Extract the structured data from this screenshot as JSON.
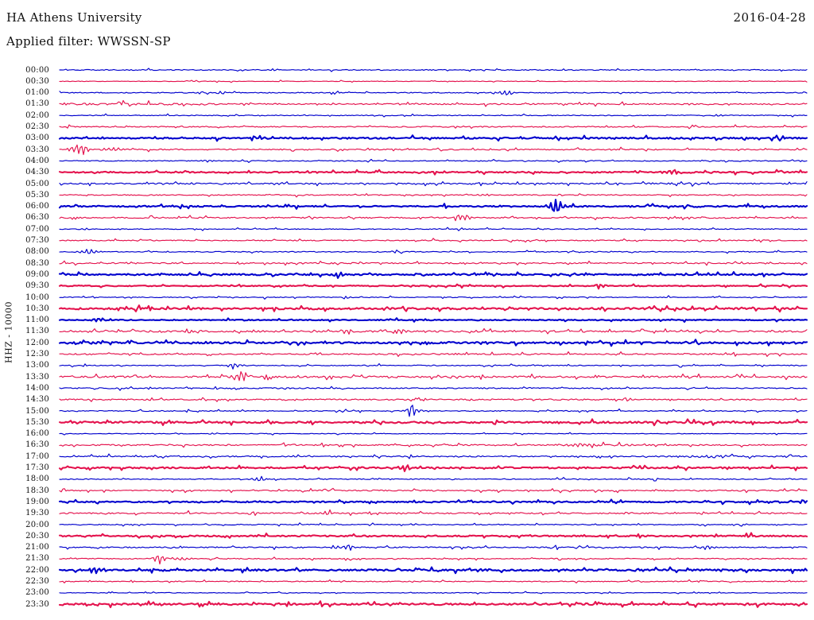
{
  "header": {
    "station_title": "HA Athens University",
    "date": "2016-04-28",
    "filter_label": "Applied filter: WWSSN-SP"
  },
  "axis": {
    "y_label": "HHZ - 10000"
  },
  "chart_data": {
    "type": "line",
    "subtype": "helicorder-daily-seismogram",
    "title": "HA Athens University",
    "date": "2016-04-28",
    "filter": "WWSSN-SP",
    "channel_scale_label": "HHZ - 10000",
    "row_duration_minutes": 30,
    "rows_count": 48,
    "colors": {
      "even_trace_blue": "#0000cd",
      "odd_trace_red": "#e4134e"
    },
    "encoding_note": "events: t = minutes into the 30-minute row (0-30), amp = peak amplitude in px, w = burst envelope half-width in px; noise = background microseism level; bold = thicker/denser trace line",
    "rows": [
      {
        "label": "00:00",
        "color": "blue",
        "bold": false,
        "noise": 1.0,
        "events": [
          {
            "t": 3.0,
            "amp": 1.5,
            "w": 4
          },
          {
            "t": 8.5,
            "amp": 1.8,
            "w": 6
          }
        ]
      },
      {
        "label": "00:30",
        "color": "red",
        "bold": false,
        "noise": 0.6,
        "events": []
      },
      {
        "label": "01:00",
        "color": "blue",
        "bold": false,
        "noise": 1.0,
        "events": [
          {
            "t": 6.5,
            "amp": 2.2,
            "w": 5
          },
          {
            "t": 17.9,
            "amp": 4.0,
            "w": 7
          }
        ]
      },
      {
        "label": "01:30",
        "color": "red",
        "bold": false,
        "noise": 1.4,
        "zones": [
          {
            "t0": 0,
            "t1": 6,
            "level": 2.4
          }
        ],
        "events": []
      },
      {
        "label": "02:00",
        "color": "blue",
        "bold": false,
        "noise": 0.9,
        "events": [
          {
            "t": 26.5,
            "amp": 1.5,
            "w": 5
          }
        ]
      },
      {
        "label": "02:30",
        "color": "red",
        "bold": false,
        "noise": 1.2,
        "events": []
      },
      {
        "label": "03:00",
        "color": "blue",
        "bold": true,
        "noise": 1.6,
        "events": [
          {
            "t": 8.1,
            "amp": 1.8,
            "w": 6
          }
        ]
      },
      {
        "label": "03:30",
        "color": "red",
        "bold": false,
        "noise": 1.3,
        "events": [
          {
            "t": 0.8,
            "amp": 8.5,
            "w": 8
          },
          {
            "t": 2.1,
            "amp": 2.5,
            "w": 10
          }
        ]
      },
      {
        "label": "04:00",
        "color": "blue",
        "bold": false,
        "noise": 1.0,
        "events": [
          {
            "t": 6.0,
            "amp": 1.5,
            "w": 8
          }
        ]
      },
      {
        "label": "04:30",
        "color": "red",
        "bold": true,
        "noise": 1.4,
        "events": [
          {
            "t": 24.5,
            "amp": 3.0,
            "w": 7
          }
        ]
      },
      {
        "label": "05:00",
        "color": "blue",
        "bold": false,
        "noise": 1.4,
        "zones": [
          {
            "t0": 23.5,
            "t1": 26,
            "level": 2.0
          }
        ],
        "events": [
          {
            "t": 8.8,
            "amp": 2.0,
            "w": 6
          }
        ]
      },
      {
        "label": "05:30",
        "color": "red",
        "bold": false,
        "noise": 1.1,
        "events": [
          {
            "t": 17.1,
            "amp": 2.0,
            "w": 5
          },
          {
            "t": 20.0,
            "amp": 1.5,
            "w": 4
          }
        ]
      },
      {
        "label": "06:00",
        "color": "blue",
        "bold": true,
        "noise": 1.4,
        "events": [
          {
            "t": 19.9,
            "amp": 10.0,
            "w": 4
          },
          {
            "t": 19.9,
            "amp": 3.0,
            "w": 12
          }
        ]
      },
      {
        "label": "06:30",
        "color": "red",
        "bold": false,
        "noise": 1.4,
        "events": [
          {
            "t": 16.2,
            "amp": 5.5,
            "w": 6
          }
        ]
      },
      {
        "label": "07:00",
        "color": "blue",
        "bold": false,
        "noise": 0.9,
        "events": [
          {
            "t": 1.0,
            "amp": 1.5,
            "w": 4
          }
        ]
      },
      {
        "label": "07:30",
        "color": "red",
        "bold": false,
        "noise": 1.1,
        "events": []
      },
      {
        "label": "08:00",
        "color": "blue",
        "bold": false,
        "noise": 1.0,
        "events": [
          {
            "t": 1.1,
            "amp": 3.5,
            "w": 9
          }
        ]
      },
      {
        "label": "08:30",
        "color": "red",
        "bold": false,
        "noise": 1.4,
        "events": [
          {
            "t": 7.2,
            "amp": 1.5,
            "w": 6
          }
        ]
      },
      {
        "label": "09:00",
        "color": "blue",
        "bold": true,
        "noise": 1.7,
        "events": [
          {
            "t": 11.2,
            "amp": 4.5,
            "w": 6
          }
        ]
      },
      {
        "label": "09:30",
        "color": "red",
        "bold": true,
        "noise": 1.0,
        "events": [
          {
            "t": 21.7,
            "amp": 4.0,
            "w": 5
          }
        ]
      },
      {
        "label": "10:00",
        "color": "blue",
        "bold": false,
        "noise": 0.9,
        "events": [
          {
            "t": 11.5,
            "amp": 1.5,
            "w": 5
          }
        ]
      },
      {
        "label": "10:30",
        "color": "red",
        "bold": true,
        "noise": 1.9,
        "events": []
      },
      {
        "label": "11:00",
        "color": "blue",
        "bold": true,
        "noise": 1.0,
        "events": [
          {
            "t": 1.5,
            "amp": 3.0,
            "w": 5
          }
        ]
      },
      {
        "label": "11:30",
        "color": "red",
        "bold": false,
        "noise": 1.8,
        "events": [
          {
            "t": 5.1,
            "amp": 2.5,
            "w": 5
          },
          {
            "t": 11.5,
            "amp": 3.5,
            "w": 6
          },
          {
            "t": 13.6,
            "amp": 3.5,
            "w": 6
          }
        ]
      },
      {
        "label": "12:00",
        "color": "blue",
        "bold": true,
        "noise": 1.8,
        "events": [
          {
            "t": 1.4,
            "amp": 2.0,
            "w": 5
          },
          {
            "t": 6.1,
            "amp": 2.0,
            "w": 5
          }
        ]
      },
      {
        "label": "12:30",
        "color": "red",
        "bold": false,
        "noise": 1.4,
        "events": []
      },
      {
        "label": "13:00",
        "color": "blue",
        "bold": false,
        "noise": 1.0,
        "events": [
          {
            "t": 7.0,
            "amp": 4.0,
            "w": 7
          }
        ]
      },
      {
        "label": "13:30",
        "color": "red",
        "bold": false,
        "noise": 1.9,
        "events": [
          {
            "t": 7.3,
            "amp": 8.5,
            "w": 7
          }
        ]
      },
      {
        "label": "14:00",
        "color": "blue",
        "bold": false,
        "noise": 1.3,
        "events": [
          {
            "t": 6.3,
            "amp": 1.5,
            "w": 4
          }
        ]
      },
      {
        "label": "14:30",
        "color": "red",
        "bold": false,
        "noise": 1.4,
        "events": [
          {
            "t": 22.8,
            "amp": 2.2,
            "w": 5
          }
        ]
      },
      {
        "label": "15:00",
        "color": "blue",
        "bold": false,
        "noise": 1.0,
        "events": [
          {
            "t": 14.1,
            "amp": 11.0,
            "w": 3
          },
          {
            "t": 14.3,
            "amp": 3.0,
            "w": 10
          }
        ]
      },
      {
        "label": "15:30",
        "color": "red",
        "bold": true,
        "noise": 1.9,
        "events": []
      },
      {
        "label": "16:00",
        "color": "blue",
        "bold": false,
        "noise": 0.7,
        "events": [
          {
            "t": 6.2,
            "amp": 1.3,
            "w": 4
          }
        ]
      },
      {
        "label": "16:30",
        "color": "red",
        "bold": false,
        "noise": 1.4,
        "zones": [
          {
            "t0": 20,
            "t1": 23,
            "level": 2.0
          }
        ],
        "events": [
          {
            "t": 21.0,
            "amp": 1.8,
            "w": 12
          }
        ]
      },
      {
        "label": "17:00",
        "color": "blue",
        "bold": false,
        "noise": 1.3,
        "zones": [
          {
            "t0": 25,
            "t1": 27.5,
            "level": 2.0
          }
        ],
        "events": [
          {
            "t": 26.5,
            "amp": 1.8,
            "w": 14
          }
        ]
      },
      {
        "label": "17:30",
        "color": "red",
        "bold": true,
        "noise": 1.6,
        "events": [
          {
            "t": 13.8,
            "amp": 4.5,
            "w": 6
          }
        ]
      },
      {
        "label": "18:00",
        "color": "blue",
        "bold": false,
        "noise": 1.0,
        "events": [
          {
            "t": 8.0,
            "amp": 4.0,
            "w": 6
          }
        ]
      },
      {
        "label": "18:30",
        "color": "red",
        "bold": false,
        "noise": 1.3,
        "events": []
      },
      {
        "label": "19:00",
        "color": "blue",
        "bold": true,
        "noise": 1.4,
        "events": [
          {
            "t": 29.8,
            "amp": 3.0,
            "w": 4
          }
        ]
      },
      {
        "label": "19:30",
        "color": "red",
        "bold": false,
        "noise": 1.4,
        "events": [
          {
            "t": 7.8,
            "amp": 2.8,
            "w": 5
          },
          {
            "t": 10.7,
            "amp": 3.2,
            "w": 5
          },
          {
            "t": 22.8,
            "amp": 1.8,
            "w": 6
          }
        ]
      },
      {
        "label": "20:00",
        "color": "blue",
        "bold": false,
        "noise": 1.0,
        "events": [
          {
            "t": 14.2,
            "amp": 1.5,
            "w": 4
          }
        ]
      },
      {
        "label": "20:30",
        "color": "red",
        "bold": true,
        "noise": 1.4,
        "events": [
          {
            "t": 27.7,
            "amp": 1.8,
            "w": 4
          }
        ]
      },
      {
        "label": "21:00",
        "color": "blue",
        "bold": false,
        "noise": 1.3,
        "events": [
          {
            "t": 11.0,
            "amp": 3.5,
            "w": 4
          },
          {
            "t": 11.6,
            "amp": 4.0,
            "w": 5
          },
          {
            "t": 26.0,
            "amp": 3.2,
            "w": 6
          }
        ]
      },
      {
        "label": "21:30",
        "color": "red",
        "bold": false,
        "noise": 1.1,
        "events": [
          {
            "t": 4.0,
            "amp": 7.5,
            "w": 5
          },
          {
            "t": 4.8,
            "amp": 2.5,
            "w": 9
          }
        ]
      },
      {
        "label": "22:00",
        "color": "blue",
        "bold": true,
        "noise": 1.8,
        "events": [
          {
            "t": 1.5,
            "amp": 4.0,
            "w": 7
          },
          {
            "t": 17.0,
            "amp": 3.2,
            "w": 6
          }
        ]
      },
      {
        "label": "22:30",
        "color": "red",
        "bold": false,
        "noise": 1.0,
        "events": [
          {
            "t": 25.7,
            "amp": 2.0,
            "w": 4
          }
        ]
      },
      {
        "label": "23:00",
        "color": "blue",
        "bold": false,
        "noise": 0.7,
        "events": [
          {
            "t": 22.1,
            "amp": 1.4,
            "w": 4
          }
        ]
      },
      {
        "label": "23:30",
        "color": "red",
        "bold": true,
        "noise": 1.9,
        "events": []
      }
    ]
  }
}
